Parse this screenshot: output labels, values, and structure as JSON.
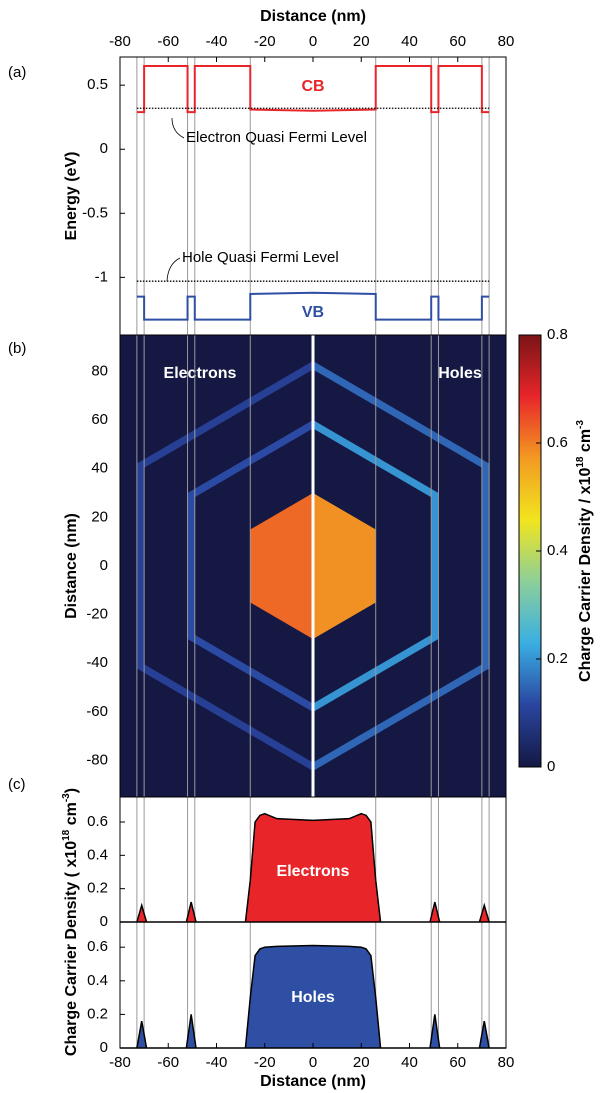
{
  "chart_data": [
    {
      "type": "line",
      "panel_label": "(a)",
      "xlabel": "Distance (nm)",
      "ylabel": "Energy (eV)",
      "xlim": [
        -80,
        80
      ],
      "xticks": [
        -80,
        -60,
        -40,
        -20,
        0,
        20,
        40,
        60,
        80
      ],
      "ylim": [
        -1.45,
        0.72
      ],
      "yticks": [
        -1,
        -0.5,
        0,
        0.5
      ],
      "interfaces": [
        -73,
        -70,
        -52,
        -49,
        -26,
        26,
        49,
        52,
        70,
        73
      ],
      "series": [
        {
          "name": "CB",
          "color": "#e8262a",
          "x": [
            -73,
            -70,
            -70,
            -52,
            -52,
            -49,
            -49,
            -26,
            -26,
            0,
            26,
            26,
            49,
            49,
            52,
            52,
            70,
            70,
            73
          ],
          "values": [
            0.29,
            0.29,
            0.65,
            0.65,
            0.29,
            0.29,
            0.65,
            0.65,
            0.31,
            0.3,
            0.31,
            0.65,
            0.65,
            0.29,
            0.29,
            0.65,
            0.65,
            0.29,
            0.29
          ]
        },
        {
          "name": "VB",
          "color": "#2e4fa3",
          "x": [
            -73,
            -70,
            -70,
            -52,
            -52,
            -49,
            -49,
            -26,
            -26,
            0,
            26,
            26,
            49,
            49,
            52,
            52,
            70,
            70,
            73
          ],
          "values": [
            -1.15,
            -1.15,
            -1.33,
            -1.33,
            -1.15,
            -1.15,
            -1.33,
            -1.33,
            -1.13,
            -1.12,
            -1.13,
            -1.33,
            -1.33,
            -1.15,
            -1.15,
            -1.33,
            -1.33,
            -1.15,
            -1.15
          ]
        },
        {
          "name": "Electron Quasi Fermi Level",
          "color": "#000000",
          "style": "dotted",
          "x": [
            -73,
            73
          ],
          "values": [
            0.32,
            0.32
          ]
        },
        {
          "name": "Hole Quasi Fermi Level",
          "color": "#000000",
          "style": "dotted",
          "x": [
            -73,
            73
          ],
          "values": [
            -1.03,
            -1.03
          ]
        }
      ]
    },
    {
      "type": "heatmap",
      "panel_label": "(b)",
      "ylabel": "Distance (nm)",
      "xlim": [
        -80,
        80
      ],
      "ylim": [
        -95,
        95
      ],
      "yticks": [
        -80,
        -60,
        -40,
        -20,
        0,
        20,
        40,
        60,
        80
      ],
      "halves": [
        "Electrons",
        "Holes"
      ],
      "hexagons": [
        {
          "inner": 0,
          "outer": 26,
          "electrons": 0.62,
          "holes": 0.58
        },
        {
          "inner": 49,
          "outer": 52,
          "electrons": 0.12,
          "holes": 0.2
        },
        {
          "inner": 70,
          "outer": 73,
          "electrons": 0.1,
          "holes": 0.15
        }
      ],
      "colorbar": {
        "label": [
          "Charge Carrier Density / x10",
          "18",
          " cm",
          "-3"
        ],
        "lim": [
          0,
          0.8
        ],
        "ticks": [
          0,
          0.2,
          0.4,
          0.6,
          0.8
        ],
        "colors": [
          "#141843",
          "#2a45a0",
          "#3aaee3",
          "#8ccf9a",
          "#f1e51e",
          "#f39a22",
          "#e8262a",
          "#7a1416"
        ]
      }
    },
    {
      "type": "area",
      "panel_label": "(c)",
      "ylabel": [
        "Charge Carrier Density ( x10",
        "18",
        " cm",
        "-3",
        ")"
      ],
      "xlim": [
        -80,
        80
      ],
      "ylim": [
        0,
        0.75
      ],
      "yticks": [
        0,
        0.2,
        0.4,
        0.6
      ],
      "x": [
        -80,
        -73,
        -72,
        -71,
        -70,
        -69,
        -52.5,
        -51.5,
        -50.5,
        -49.5,
        -48.5,
        -28,
        -26,
        -24,
        -22,
        -20,
        -15,
        0,
        15,
        20,
        22,
        24,
        26,
        28,
        48.5,
        49.5,
        50.5,
        51.5,
        52.5,
        69,
        70,
        71,
        72,
        73,
        80
      ],
      "series": [
        {
          "name": "Electrons",
          "color": "#e8262a",
          "values": [
            0,
            0,
            0.05,
            0.1,
            0.05,
            0,
            0,
            0.06,
            0.12,
            0.06,
            0,
            0,
            0.25,
            0.6,
            0.64,
            0.65,
            0.62,
            0.61,
            0.62,
            0.65,
            0.64,
            0.6,
            0.25,
            0,
            0,
            0.06,
            0.12,
            0.06,
            0,
            0,
            0.05,
            0.1,
            0.05,
            0,
            0
          ]
        }
      ]
    },
    {
      "type": "area",
      "xlabel": "Distance (nm)",
      "xlim": [
        -80,
        80
      ],
      "xticks": [
        -80,
        -60,
        -40,
        -20,
        0,
        20,
        40,
        60,
        80
      ],
      "ylim": [
        0,
        0.75
      ],
      "yticks": [
        0,
        0.2,
        0.4,
        0.6
      ],
      "x": [
        -80,
        -73,
        -72,
        -71,
        -70,
        -69,
        -52.5,
        -51.5,
        -50.5,
        -49.5,
        -48.5,
        -28,
        -26,
        -24,
        -22,
        -20,
        -15,
        0,
        15,
        20,
        22,
        24,
        26,
        28,
        48.5,
        49.5,
        50.5,
        51.5,
        52.5,
        69,
        70,
        71,
        72,
        73,
        80
      ],
      "series": [
        {
          "name": "Holes",
          "color": "#2e4fa3",
          "values": [
            0,
            0,
            0.08,
            0.16,
            0.08,
            0,
            0,
            0.1,
            0.2,
            0.1,
            0,
            0,
            0.3,
            0.55,
            0.59,
            0.6,
            0.605,
            0.61,
            0.605,
            0.6,
            0.59,
            0.55,
            0.3,
            0,
            0,
            0.1,
            0.2,
            0.1,
            0,
            0,
            0.08,
            0.16,
            0.08,
            0,
            0
          ]
        }
      ]
    }
  ]
}
